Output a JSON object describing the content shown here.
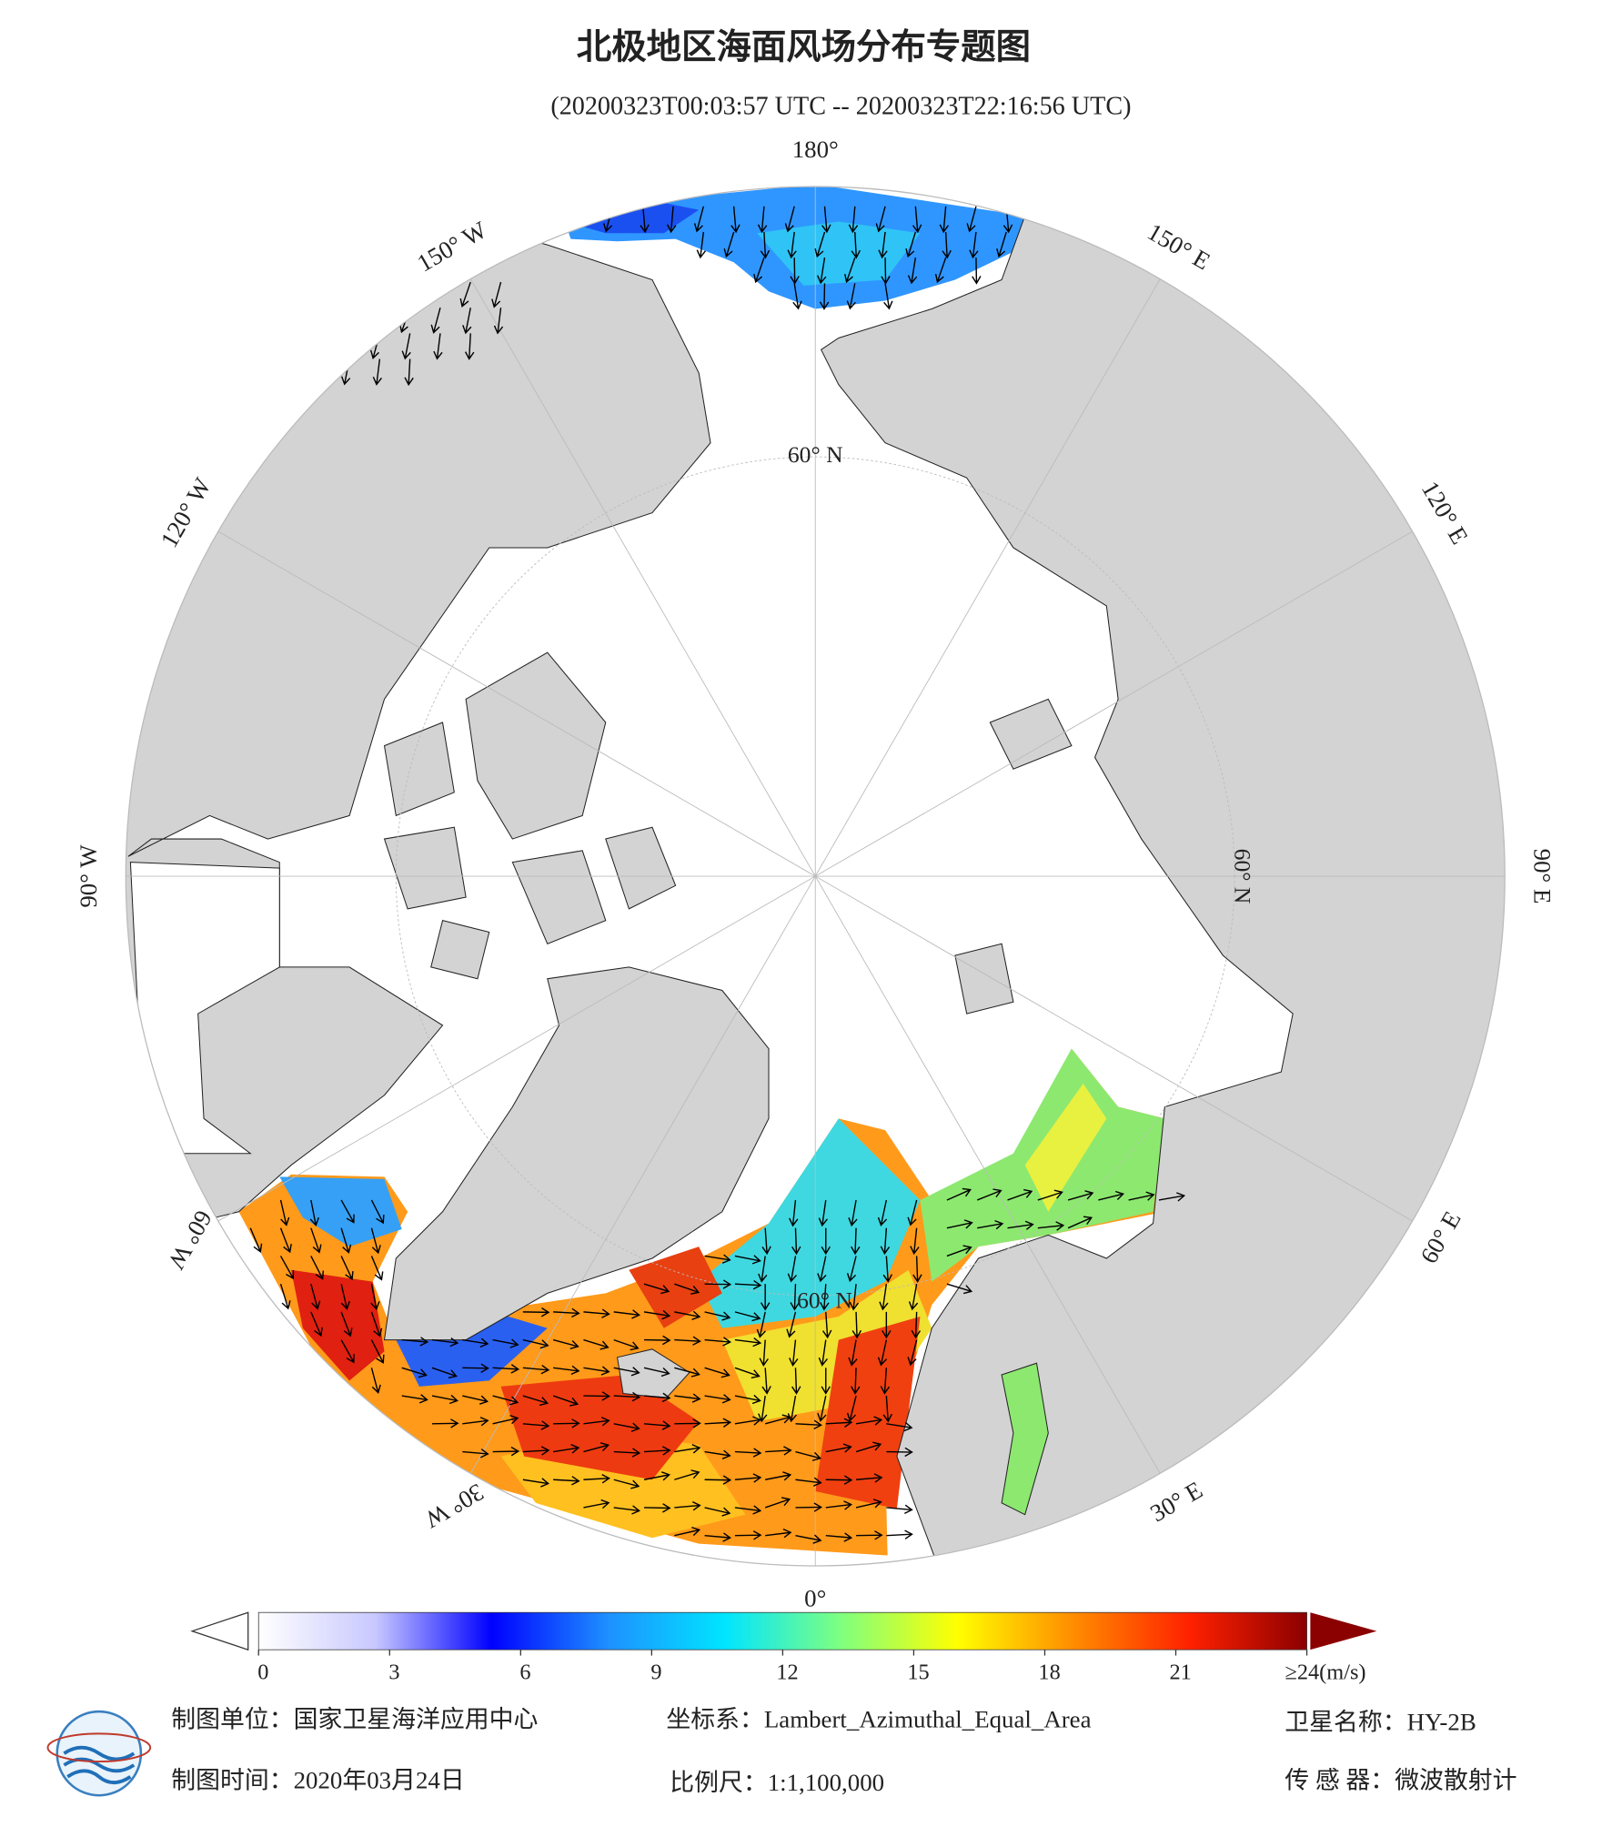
{
  "title": "北极地区海面风场分布专题图",
  "subtitle": "(20200323T00:03:57 UTC -- 20200323T22:16:56 UTC)",
  "map": {
    "longitude_labels": [
      "180°",
      "150° E",
      "120° E",
      "90° E",
      "60° E",
      "30° E",
      "0°",
      "30° W",
      "60° W",
      "90° W",
      "120° W",
      "150° W"
    ],
    "latitude_labels": [
      "60° N",
      "60° N",
      "60° N"
    ]
  },
  "colorbar": {
    "range": [
      0,
      24
    ],
    "ticks": [
      0,
      3,
      6,
      9,
      12,
      15,
      18,
      21,
      {
        "value": 24,
        "label": "≥24(m/s)"
      }
    ],
    "colors": [
      "#ffffff",
      "#c8c8ff",
      "#0000ff",
      "#1e90ff",
      "#00e5ff",
      "#7fff7f",
      "#ffff00",
      "#ff8c00",
      "#ff2000",
      "#8b0000"
    ]
  },
  "footer": {
    "mapping_unit": "制图单位：国家卫星海洋应用中心",
    "coordinate_system": "坐标系：Lambert_Azimuthal_Equal_Area",
    "satellite": "卫星名称：HY-2B",
    "mapping_date": "制图时间：2020年03月24日",
    "scale": "比例尺：1:1,100,000",
    "sensor": "传 感 器：微波散射计"
  }
}
